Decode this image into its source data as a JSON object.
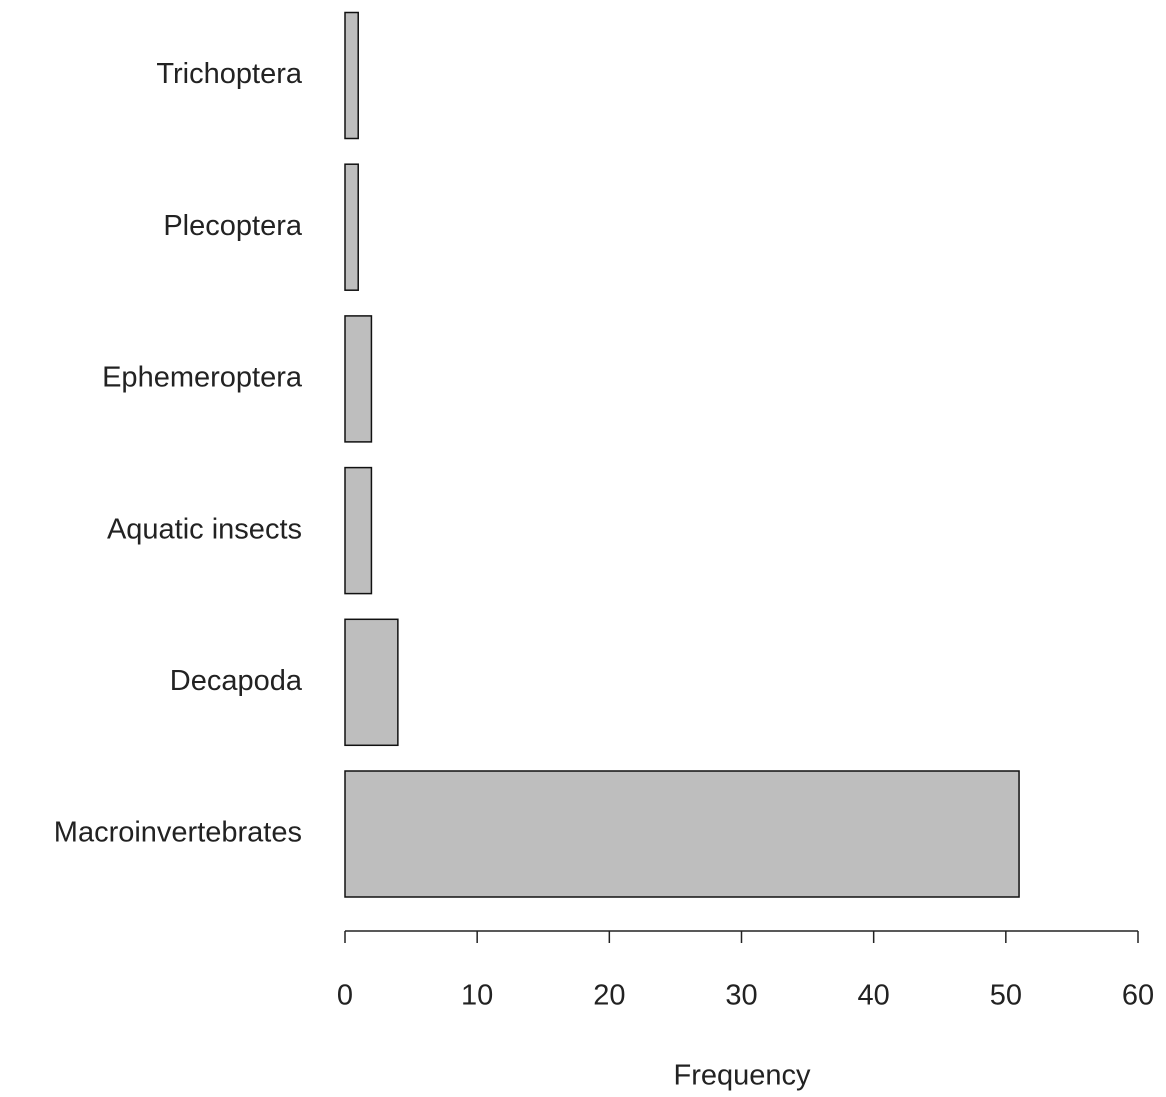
{
  "chart_data": {
    "type": "bar",
    "orientation": "horizontal",
    "categories": [
      "Macroinvertebrates",
      "Decapoda",
      "Aquatic insects",
      "Ephemeroptera",
      "Plecoptera",
      "Trichoptera"
    ],
    "values": [
      51,
      4,
      2,
      2,
      1,
      1
    ],
    "color": "#bebebe",
    "x_label": "Frequency",
    "xlim": [
      0,
      60
    ],
    "xticks": [
      0,
      10,
      20,
      30,
      40,
      50,
      60
    ],
    "grid": false
  }
}
